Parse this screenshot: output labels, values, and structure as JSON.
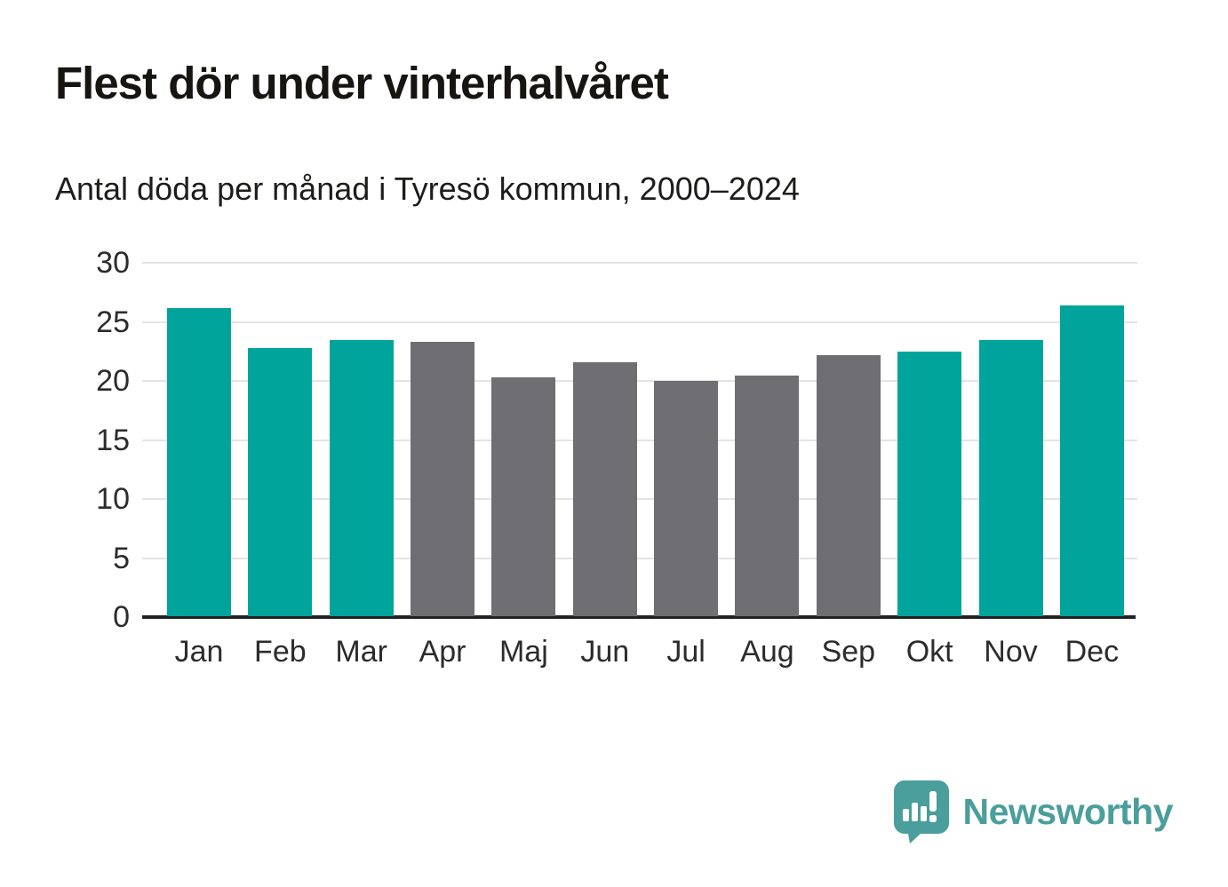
{
  "chart_data": {
    "type": "bar",
    "title": "Flest dör under vinterhalvåret",
    "subtitle": "Antal döda per månad i Tyresö kommun, 2000–2024",
    "categories": [
      "Jan",
      "Feb",
      "Mar",
      "Apr",
      "Maj",
      "Jun",
      "Jul",
      "Aug",
      "Sep",
      "Okt",
      "Nov",
      "Dec"
    ],
    "values": [
      26.1,
      22.7,
      23.4,
      23.2,
      20.2,
      21.5,
      19.9,
      20.4,
      22.1,
      22.4,
      23.4,
      26.3
    ],
    "season": [
      "winter",
      "winter",
      "winter",
      "summer",
      "summer",
      "summer",
      "summer",
      "summer",
      "summer",
      "winter",
      "winter",
      "winter"
    ],
    "xlabel": "",
    "ylabel": "",
    "ylim": [
      0,
      30
    ],
    "yticks": [
      0,
      5,
      10,
      15,
      20,
      25,
      30
    ],
    "grid": "horizontal",
    "legend": "none",
    "colors": {
      "winter": "#00a49b",
      "summer": "#6e6e73",
      "gridline": "#e4e4e4",
      "axis": "#222222"
    }
  },
  "branding": {
    "name": "Newsworthy",
    "color": "#4a9e9b",
    "icon": "newsworthy-speech-bubble-barchart-icon"
  }
}
